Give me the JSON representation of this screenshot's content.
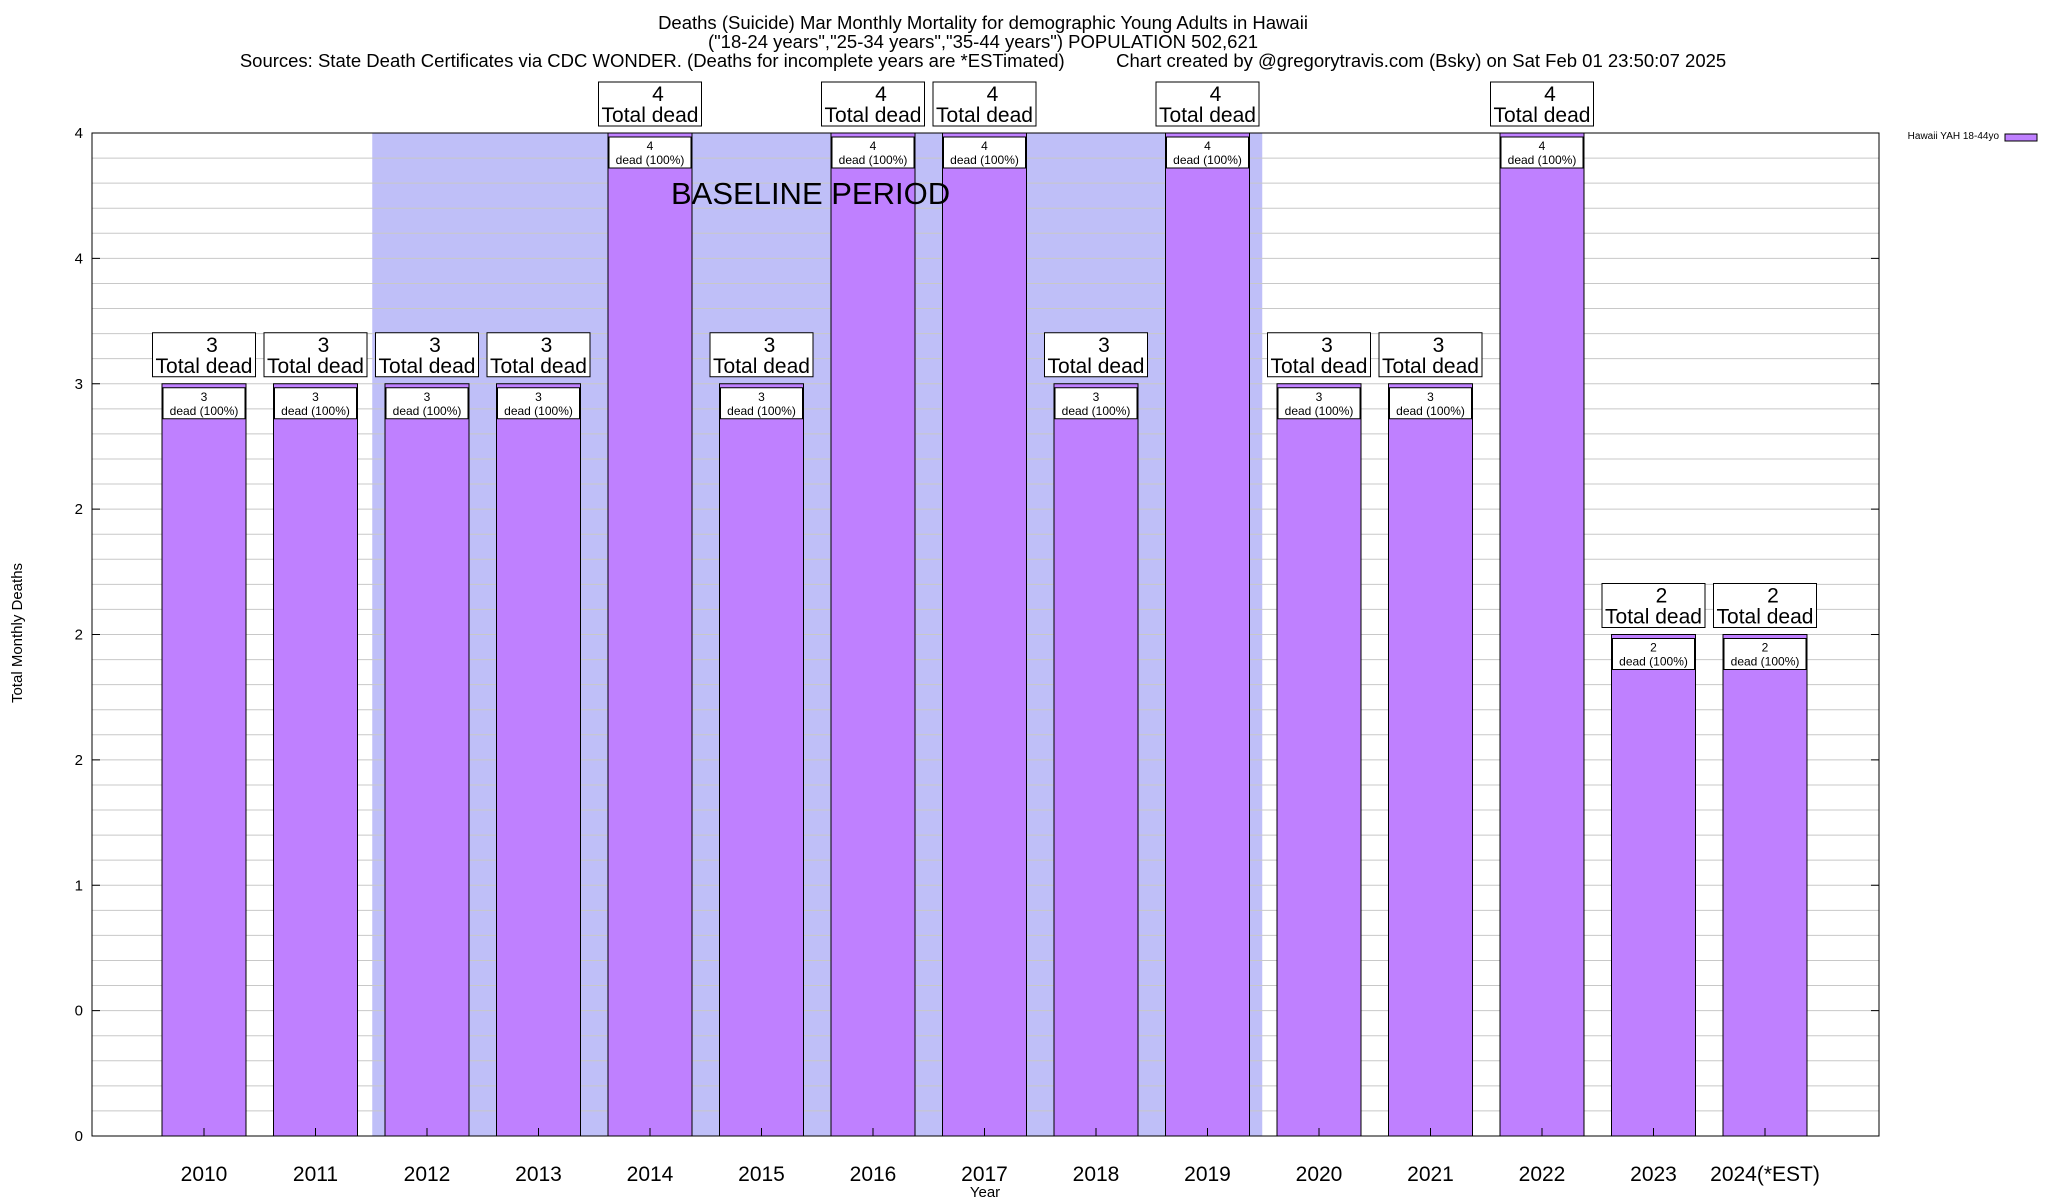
{
  "header": {
    "line1": "Deaths (Suicide) Mar Monthly Mortality for demographic Young Adults in Hawaii",
    "line2": "(\"18-24 years\",\"25-34 years\",\"35-44 years\") POPULATION 502,621",
    "line3_left": "Sources: State Death Certificates via CDC WONDER. (Deaths for incomplete years are *ESTimated)",
    "line3_right": "Chart created by @gregorytravis.com (Bsky) on Sat Feb 01 23:50:07 2025"
  },
  "colors": {
    "bar_fill": "#bf80ff",
    "baseline_fill": "#bfbff8",
    "grid": "#c8c8c8"
  },
  "chart_data": {
    "type": "bar",
    "title": "Deaths (Suicide) Mar Monthly Mortality for demographic Young Adults in Hawaii",
    "xlabel": "Year",
    "ylabel": "Total Monthly Deaths",
    "ylim": [
      0,
      4
    ],
    "y_ticks": [
      {
        "value": 0,
        "label": "0"
      },
      {
        "value": 0.5,
        "label": "0"
      },
      {
        "value": 1,
        "label": "1"
      },
      {
        "value": 1.5,
        "label": "2"
      },
      {
        "value": 2,
        "label": "2"
      },
      {
        "value": 2.5,
        "label": "2"
      },
      {
        "value": 3,
        "label": "3"
      },
      {
        "value": 3.5,
        "label": "4"
      },
      {
        "value": 4,
        "label": "4"
      }
    ],
    "categories": [
      "2010",
      "2011",
      "2012",
      "2013",
      "2014",
      "2015",
      "2016",
      "2017",
      "2018",
      "2019",
      "2020",
      "2021",
      "2022",
      "2023",
      "2024(*EST)"
    ],
    "series": [
      {
        "name": "Hawaii YAH 18-44yo",
        "values": [
          3,
          3,
          3,
          3,
          4,
          3,
          4,
          4,
          3,
          4,
          3,
          3,
          4,
          2,
          2
        ],
        "bar_labels": [
          "3",
          "3",
          "3",
          "3",
          "4",
          "3",
          "4",
          "4",
          "3",
          "4",
          "3",
          "3",
          "4",
          "2",
          "2"
        ]
      }
    ],
    "total_label_suffix": "Total dead",
    "inner_label_suffix": "dead (100%)",
    "baseline": {
      "label": "BASELINE PERIOD",
      "start_year": "2012",
      "end_year": "2019"
    },
    "legend": {
      "label": "Hawaii YAH 18-44yo",
      "placement": "top-right"
    }
  }
}
